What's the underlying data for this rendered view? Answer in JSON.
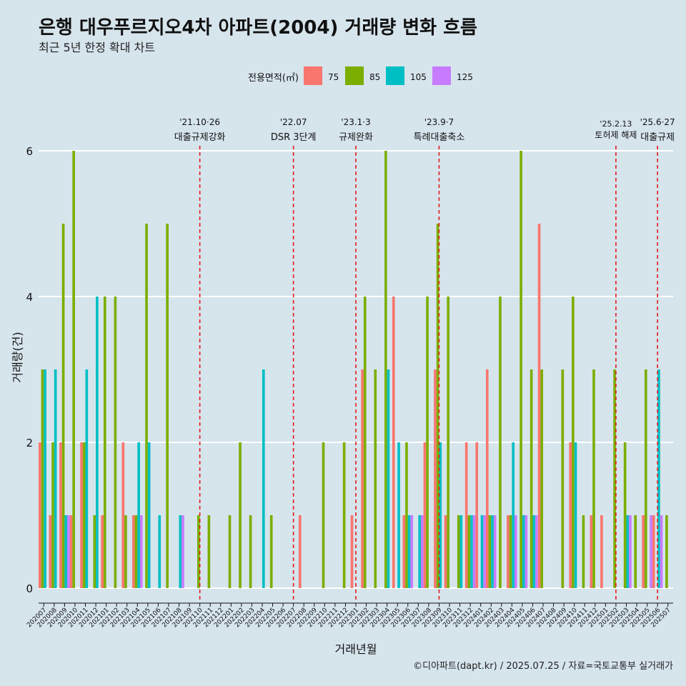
{
  "header": {
    "title": "은행 대우푸르지오4차 아파트(2004) 거래량 변화 흐름",
    "subtitle": "최근 5년 한정 확대 차트"
  },
  "caption": "©디아파트(dapt.kr) / 2025.07.25 / 자료=국토교통부 실거래가",
  "legend": {
    "title": "전용면적(㎡)",
    "entries": [
      {
        "label": "75",
        "color": "#f8766d"
      },
      {
        "label": "85",
        "color": "#7cae00"
      },
      {
        "label": "105",
        "color": "#00bfc4"
      },
      {
        "label": "125",
        "color": "#c77cff"
      }
    ]
  },
  "chart_data": {
    "type": "bar",
    "xlabel": "거래년월",
    "ylabel": "거래량(건)",
    "ylim": [
      0,
      6.5
    ],
    "yticks": [
      0,
      2,
      4,
      6
    ],
    "grid": true,
    "legend_position": "top",
    "categories": [
      "202007",
      "202008",
      "202009",
      "202010",
      "202011",
      "202012",
      "202101",
      "202102",
      "202103",
      "202104",
      "202105",
      "202106",
      "202107",
      "202108",
      "202109",
      "202110",
      "202111",
      "202112",
      "202201",
      "202202",
      "202203",
      "202204",
      "202205",
      "202206",
      "202207",
      "202208",
      "202209",
      "202210",
      "202211",
      "202212",
      "202301",
      "202302",
      "202303",
      "202304",
      "202305",
      "202306",
      "202307",
      "202308",
      "202309",
      "202310",
      "202311",
      "202312",
      "202401",
      "202402",
      "202403",
      "202404",
      "202405",
      "202406",
      "202407",
      "202408",
      "202409",
      "202410",
      "202411",
      "202412",
      "202501",
      "202502",
      "202503",
      "202504",
      "202505",
      "202506",
      "202507"
    ],
    "series": [
      {
        "name": "75",
        "values": [
          2,
          1,
          2,
          1,
          2,
          0,
          1,
          0,
          2,
          1,
          0,
          0,
          0,
          0,
          0,
          0,
          0,
          0,
          0,
          0,
          0,
          0,
          0,
          0,
          0,
          1,
          0,
          0,
          0,
          0,
          1,
          3,
          0,
          0,
          4,
          1,
          0,
          2,
          3,
          1,
          0,
          2,
          2,
          3,
          0,
          1,
          0,
          0,
          5,
          0,
          0,
          2,
          0,
          1,
          1,
          0,
          0,
          0,
          1,
          1,
          0
        ]
      },
      {
        "name": "85",
        "values": [
          3,
          2,
          5,
          6,
          2,
          1,
          4,
          4,
          1,
          1,
          5,
          0,
          5,
          0,
          0,
          1,
          1,
          0,
          1,
          2,
          1,
          0,
          1,
          0,
          0,
          0,
          0,
          2,
          0,
          2,
          0,
          4,
          3,
          6,
          0,
          2,
          0,
          4,
          5,
          4,
          1,
          1,
          0,
          1,
          4,
          1,
          6,
          3,
          3,
          0,
          3,
          4,
          1,
          3,
          0,
          3,
          2,
          1,
          3,
          0,
          1
        ]
      },
      {
        "name": "105",
        "values": [
          3,
          3,
          1,
          0,
          3,
          4,
          0,
          0,
          0,
          2,
          2,
          1,
          0,
          1,
          0,
          0,
          0,
          0,
          0,
          0,
          0,
          3,
          0,
          0,
          0,
          0,
          0,
          0,
          0,
          0,
          0,
          0,
          0,
          3,
          2,
          1,
          1,
          0,
          2,
          0,
          1,
          1,
          1,
          1,
          0,
          2,
          1,
          1,
          0,
          0,
          0,
          2,
          0,
          0,
          0,
          0,
          1,
          0,
          0,
          3,
          0
        ]
      },
      {
        "name": "125",
        "values": [
          0,
          0,
          1,
          0,
          0,
          0,
          0,
          0,
          0,
          1,
          0,
          0,
          0,
          1,
          0,
          0,
          0,
          0,
          0,
          0,
          0,
          0,
          0,
          0,
          0,
          0,
          0,
          0,
          0,
          0,
          0,
          0,
          0,
          0,
          0,
          1,
          1,
          0,
          0,
          0,
          0,
          1,
          1,
          1,
          0,
          1,
          1,
          1,
          0,
          0,
          0,
          0,
          0,
          0,
          0,
          0,
          1,
          0,
          1,
          1,
          0
        ]
      }
    ],
    "annotations": [
      {
        "at": "202110",
        "date": "'21.10·26",
        "label": "대출규제강화"
      },
      {
        "at": "202207",
        "date": "'22.07",
        "label": "DSR 3단계"
      },
      {
        "at": "202301",
        "date": "'23.1·3",
        "label": "규제완화"
      },
      {
        "at": "202309",
        "date": "'23.9·7",
        "label": "특례대출축소"
      },
      {
        "at": "202502",
        "date": "'25.2.13",
        "label": "토허제 해제"
      },
      {
        "at": "202506",
        "date": "'25.6·27",
        "label": "대출규제"
      }
    ]
  }
}
